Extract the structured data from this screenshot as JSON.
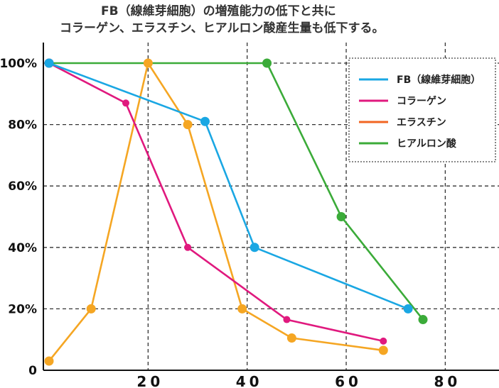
{
  "chart_data": {
    "type": "line",
    "title_lines": [
      "FB（線維芽細胞）の増殖能力の低下と共に",
      "コラーゲン、エラスチン、ヒアルロン酸産生量も低下する。"
    ],
    "x_ticks": [
      "20",
      "40",
      "60",
      "80"
    ],
    "x_tick_values": [
      20,
      40,
      60,
      80
    ],
    "y_ticks": [
      "0",
      "20%",
      "40%",
      "60%",
      "80%",
      "100%"
    ],
    "y_tick_values": [
      0,
      20,
      40,
      60,
      80,
      100
    ],
    "xlim": [
      0,
      92
    ],
    "ylim": [
      0,
      100
    ],
    "grid": true,
    "legend_position": "top-right",
    "series": [
      {
        "name": "FB（線維芽細胞）",
        "color": "#1aa7e3",
        "points": [
          [
            0,
            100
          ],
          [
            31.5,
            81
          ],
          [
            41.5,
            40
          ],
          [
            72.5,
            20
          ]
        ]
      },
      {
        "name": "コラーゲン",
        "color": "#e0197e",
        "points": [
          [
            0,
            100
          ],
          [
            15.5,
            87
          ],
          [
            28,
            40
          ],
          [
            48,
            16.5
          ],
          [
            67.5,
            9.5
          ]
        ]
      },
      {
        "name": "エラスチン",
        "color": "#f5a623",
        "legend_color": "#f26522",
        "points": [
          [
            0,
            3
          ],
          [
            8.5,
            20
          ],
          [
            20,
            100
          ],
          [
            28,
            80
          ],
          [
            39,
            20
          ],
          [
            49,
            10.5
          ],
          [
            67.5,
            6.5
          ]
        ]
      },
      {
        "name": "ヒアルロン酸",
        "color": "#3bab39",
        "points": [
          [
            0,
            100
          ],
          [
            44,
            100
          ],
          [
            59,
            50
          ],
          [
            75.5,
            16.5
          ]
        ]
      }
    ]
  }
}
